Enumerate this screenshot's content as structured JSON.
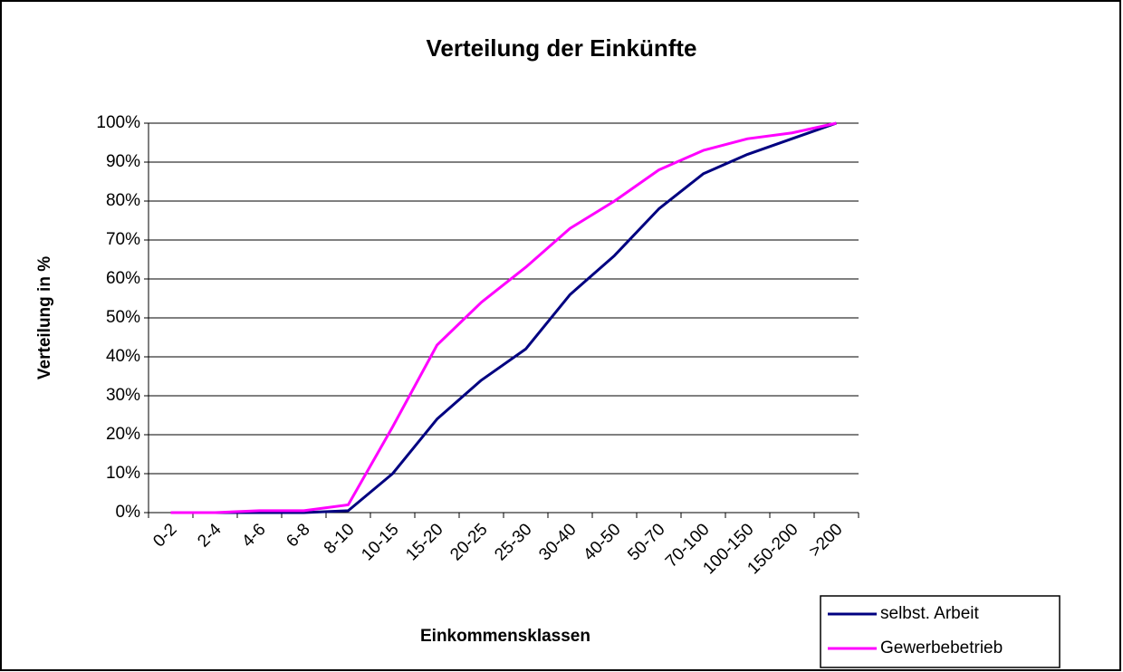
{
  "chart_data": {
    "type": "line",
    "title": "Verteilung der Einkünfte",
    "x_label": "Einkommensklassen",
    "y_label": "Verteilung in %",
    "categories": [
      "0-2",
      "2-4",
      "4-6",
      "6-8",
      "8-10",
      "10-15",
      "15-20",
      "20-25",
      "25-30",
      "30-40",
      "40-50",
      "50-70",
      "70-100",
      "100-150",
      "150-200",
      ">200"
    ],
    "series": [
      {
        "name": "selbst. Arbeit",
        "color": "#000080",
        "values": [
          0,
          0,
          0,
          0,
          0.5,
          10,
          24,
          34,
          42,
          56,
          66,
          78,
          87,
          92,
          96,
          100
        ]
      },
      {
        "name": "Gewerbebetrieb",
        "color": "#ff00ff",
        "values": [
          0,
          0,
          0.5,
          0.5,
          2,
          22,
          43,
          54,
          63,
          73,
          80,
          88,
          93,
          96,
          97.5,
          100
        ]
      }
    ],
    "ylim": [
      0,
      100
    ],
    "yticks": [
      {
        "value": 0,
        "label": "0%"
      },
      {
        "value": 10,
        "label": "10%"
      },
      {
        "value": 20,
        "label": "20%"
      },
      {
        "value": 30,
        "label": "30%"
      },
      {
        "value": 40,
        "label": "40%"
      },
      {
        "value": 50,
        "label": "50%"
      },
      {
        "value": 60,
        "label": "60%"
      },
      {
        "value": 70,
        "label": "70%"
      },
      {
        "value": 80,
        "label": "80%"
      },
      {
        "value": 90,
        "label": "90%"
      },
      {
        "value": 100,
        "label": "100%"
      }
    ],
    "grid": true,
    "legend": "bottom-right"
  }
}
